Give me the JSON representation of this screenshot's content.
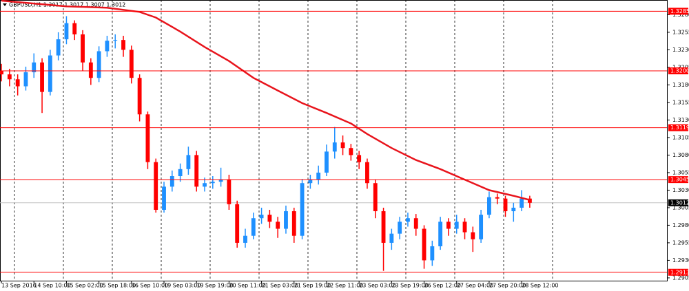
{
  "chart_data": {
    "type": "candlestick",
    "title": "GBPUSD,H1  1.3017 1.3017 1.3007 1.3012",
    "x": [
      0,
      4,
      8,
      12,
      16,
      20,
      24,
      28,
      32,
      36,
      40,
      44,
      48,
      52,
      56,
      60,
      64,
      68,
      72,
      76,
      80,
      84,
      88,
      92,
      96,
      100,
      104,
      108,
      112,
      116,
      120,
      124,
      128,
      132,
      136,
      140,
      144,
      148,
      152,
      156,
      160,
      164,
      168,
      172,
      176,
      180,
      184,
      188,
      192,
      196,
      200,
      204,
      208,
      212,
      216,
      220,
      224,
      228,
      232,
      236,
      240,
      244,
      248,
      252,
      256,
      260
    ],
    "open": [
      1.32,
      1.3195,
      1.3188,
      1.3178,
      1.3198,
      1.3212,
      1.317,
      1.3222,
      1.3245,
      1.3268,
      1.3252,
      1.3212,
      1.319,
      1.3228,
      1.3243,
      1.3244,
      1.323,
      1.319,
      1.3138,
      1.307,
      1.3002,
      1.3035,
      1.305,
      1.306,
      1.308,
      1.3035,
      1.304,
      1.3042,
      1.3045,
      1.301,
      1.2955,
      1.2965,
      1.299,
      1.2995,
      1.2985,
      1.2975,
      1.3,
      1.2965,
      1.304,
      1.3045,
      1.3055,
      1.3085,
      1.3098,
      1.309,
      1.308,
      1.307,
      1.304,
      1.3,
      1.2955,
      1.2968,
      1.2985,
      1.299,
      1.2975,
      1.293,
      1.295,
      1.2985,
      1.2975,
      1.2985,
      1.297,
      1.296,
      1.2995,
      1.302,
      1.3018,
      1.3,
      1.3005,
      1.3018
    ],
    "high": [
      1.321,
      1.3203,
      1.3195,
      1.3206,
      1.3225,
      1.3218,
      1.323,
      1.3255,
      1.3278,
      1.3272,
      1.3258,
      1.3218,
      1.3235,
      1.325,
      1.3252,
      1.325,
      1.3236,
      1.3195,
      1.3142,
      1.3075,
      1.3042,
      1.3058,
      1.3068,
      1.3092,
      1.3086,
      1.3048,
      1.305,
      1.3062,
      1.3052,
      1.3015,
      1.2975,
      1.2998,
      1.3005,
      1.3002,
      1.2992,
      1.3008,
      1.3005,
      1.3046,
      1.3052,
      1.3065,
      1.3095,
      1.312,
      1.3108,
      1.3096,
      1.3086,
      1.3075,
      1.3045,
      1.3005,
      1.2975,
      1.2992,
      1.2998,
      1.2996,
      1.298,
      1.2958,
      1.2992,
      1.299,
      1.2995,
      1.299,
      1.2978,
      1.3002,
      1.3028,
      1.3025,
      1.3022,
      1.3012,
      1.303,
      1.3022
    ],
    "low": [
      1.3185,
      1.3178,
      1.3165,
      1.3172,
      1.319,
      1.314,
      1.3165,
      1.3215,
      1.3238,
      1.3244,
      1.32,
      1.318,
      1.3184,
      1.322,
      1.3232,
      1.322,
      1.3182,
      1.3128,
      1.306,
      1.2998,
      1.2998,
      1.3028,
      1.3042,
      1.3052,
      1.3028,
      1.3028,
      1.3032,
      1.3035,
      1.3002,
      1.2948,
      1.2948,
      1.296,
      1.2982,
      1.2976,
      1.2962,
      1.2968,
      1.2955,
      1.296,
      1.3032,
      1.3038,
      1.305,
      1.3075,
      1.308,
      1.3072,
      1.306,
      1.3032,
      1.299,
      1.2915,
      1.2945,
      1.296,
      1.2978,
      1.2965,
      1.2918,
      1.2922,
      1.2945,
      1.2965,
      1.2968,
      1.296,
      1.2942,
      1.2955,
      1.299,
      1.301,
      1.2992,
      1.2985,
      1.3,
      1.3005
    ],
    "close": [
      1.3195,
      1.3188,
      1.3178,
      1.3198,
      1.3212,
      1.317,
      1.3222,
      1.3245,
      1.3268,
      1.3252,
      1.3212,
      1.319,
      1.3228,
      1.3243,
      1.3244,
      1.323,
      1.319,
      1.3138,
      1.307,
      1.3002,
      1.3035,
      1.305,
      1.306,
      1.308,
      1.3035,
      1.304,
      1.3042,
      1.3045,
      1.301,
      1.2955,
      1.2965,
      1.299,
      1.2995,
      1.2985,
      1.2975,
      1.3,
      1.2965,
      1.304,
      1.3045,
      1.3055,
      1.3085,
      1.3098,
      1.309,
      1.308,
      1.307,
      1.304,
      1.3,
      1.2955,
      1.2968,
      1.2985,
      1.299,
      1.2975,
      1.293,
      1.295,
      1.2985,
      1.2975,
      1.2985,
      1.297,
      1.296,
      1.2995,
      1.302,
      1.3018,
      1.3,
      1.3005,
      1.3018,
      1.3012
    ],
    "up_color": "#1e90ff",
    "down_color": "#ff0000",
    "ma": {
      "color": "#e8141c",
      "x": [
        0,
        32,
        52,
        68,
        76,
        88,
        100,
        112,
        124,
        136,
        148,
        160,
        172,
        180,
        192,
        204,
        216,
        228,
        240,
        252,
        260
      ],
      "values": [
        1.33,
        1.3292,
        1.329,
        1.3284,
        1.3276,
        1.3256,
        1.3234,
        1.3214,
        1.319,
        1.3172,
        1.3154,
        1.314,
        1.3125,
        1.311,
        1.309,
        1.3073,
        1.306,
        1.3045,
        1.303,
        1.3022,
        1.3016
      ]
    },
    "levels": {
      "color": "#ff0000",
      "values": [
        {
          "value": 1.3285,
          "label": "1.3285"
        },
        {
          "value": 1.32,
          "label": "1.3200"
        },
        {
          "value": 1.3119,
          "label": "1.3119"
        },
        {
          "value": 1.3045,
          "label": "1.3045"
        },
        {
          "value": 1.2913,
          "label": "1.2913"
        }
      ]
    },
    "current_price": {
      "value": 1.3012,
      "label": "1.3012"
    },
    "xlim": [
      -0.7,
      327.5
    ],
    "ylim": [
      1.2901,
      1.3301
    ],
    "xticks": [
      {
        "value": 0,
        "label": "13 Sep 2016"
      },
      {
        "value": 16,
        "label": "14 Sep 10:00"
      },
      {
        "value": 32,
        "label": "15 Sep 02:00"
      },
      {
        "value": 48,
        "label": "15 Sep 18:00"
      },
      {
        "value": 64,
        "label": "16 Sep 10:00"
      },
      {
        "value": 80,
        "label": "19 Sep 03:00"
      },
      {
        "value": 96,
        "label": "19 Sep 19:00"
      },
      {
        "value": 112,
        "label": "20 Sep 11:00"
      },
      {
        "value": 128,
        "label": "21 Sep 03:00"
      },
      {
        "value": 144,
        "label": "21 Sep 19:00"
      },
      {
        "value": 160,
        "label": "22 Sep 11:00"
      },
      {
        "value": 176,
        "label": "23 Sep 03:00"
      },
      {
        "value": 192,
        "label": "23 Sep 19:00"
      },
      {
        "value": 208,
        "label": "26 Sep 12:00"
      },
      {
        "value": 224,
        "label": "27 Sep 04:00"
      },
      {
        "value": 240,
        "label": "27 Sep 20:00"
      },
      {
        "value": 256,
        "label": "28 Sep 12:00"
      }
    ],
    "yticks": [
      {
        "value": 1.328,
        "label": "1.3280"
      },
      {
        "value": 1.3255,
        "label": "1.3255"
      },
      {
        "value": 1.323,
        "label": "1.3230"
      },
      {
        "value": 1.3205,
        "label": "1.3205"
      },
      {
        "value": 1.318,
        "label": "1.3180"
      },
      {
        "value": 1.3155,
        "label": "1.3155"
      },
      {
        "value": 1.313,
        "label": "1.3130"
      },
      {
        "value": 1.3105,
        "label": "1.3105"
      },
      {
        "value": 1.308,
        "label": "1.3080"
      },
      {
        "value": 1.3055,
        "label": "1.3055"
      },
      {
        "value": 1.303,
        "label": "1.3030"
      },
      {
        "value": 1.3005,
        "label": "1.3005"
      },
      {
        "value": 1.298,
        "label": "1.2980"
      },
      {
        "value": 1.2955,
        "label": "1.2955"
      },
      {
        "value": 1.293,
        "label": "1.2930"
      },
      {
        "value": 1.2905,
        "label": "1.2905"
      }
    ]
  }
}
